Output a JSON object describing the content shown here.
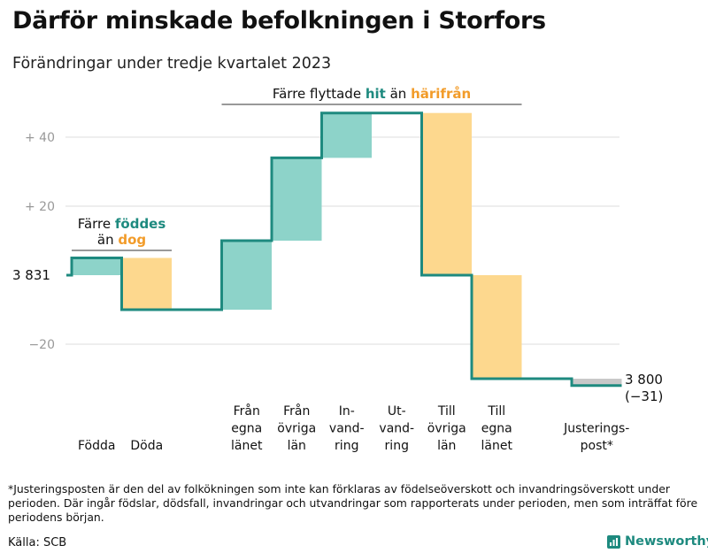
{
  "title": "Därför minskade befolkningen i Storfors",
  "subtitle": "Förändringar under tredje kvartalet 2023",
  "footnote": "*Justeringsposten är den del av folkökningen som inte kan förklaras av födelseöverskott och invandringsöverskott under perioden. Där ingår födslar, dödsfall, invandringar och utvandringar som rapporterats under perioden, men som inträffat före periodens början.",
  "source": "Källa: SCB",
  "brand": "Newsworthy",
  "colors": {
    "teal": "#1e8a7f",
    "teal_light": "#8dd3c9",
    "orange": "#f29c2a",
    "orange_light": "#fdd88e",
    "grey": "#c8c8c8",
    "line": "#1e8a7f"
  },
  "chart_data": {
    "type": "waterfall",
    "baseline_value": 3831,
    "baseline_label": "3 831",
    "end_value": 3800,
    "end_label": "3 800",
    "end_change_label": "(−31)",
    "ylim": [
      -30,
      50
    ],
    "yticks": [
      {
        "value": 40,
        "label": "+ 40"
      },
      {
        "value": 20,
        "label": "+ 20"
      },
      {
        "value": -20,
        "label": "−20"
      }
    ],
    "steps": [
      {
        "label": [
          "Födda"
        ],
        "value": 5,
        "kind": "in"
      },
      {
        "label": [
          "Döda"
        ],
        "value": -15,
        "kind": "out"
      },
      {
        "label": [],
        "value": 0,
        "kind": "gap"
      },
      {
        "label": [
          "Från",
          "egna",
          "länet"
        ],
        "value": 20,
        "kind": "in"
      },
      {
        "label": [
          "Från",
          "övriga",
          "län"
        ],
        "value": 24,
        "kind": "in"
      },
      {
        "label": [
          "In-",
          "vand-",
          "ring"
        ],
        "value": 13,
        "kind": "in"
      },
      {
        "label": [
          "Ut-",
          "vand-",
          "ring"
        ],
        "value": 0,
        "kind": "out"
      },
      {
        "label": [
          "Till",
          "övriga",
          "län"
        ],
        "value": -47,
        "kind": "out"
      },
      {
        "label": [
          "Till",
          "egna",
          "länet"
        ],
        "value": -30,
        "kind": "out"
      },
      {
        "label": [],
        "value": 0,
        "kind": "gap"
      },
      {
        "label": [
          "Justerings-",
          "post*"
        ],
        "value": -2,
        "kind": "adjust"
      }
    ],
    "annotations": [
      {
        "id": "birth",
        "parts": [
          [
            "Färre ",
            "plain"
          ],
          [
            "föddes",
            "teal"
          ]
        ],
        "parts2": [
          [
            "än ",
            "plain"
          ],
          [
            "dog",
            "orange"
          ]
        ]
      },
      {
        "id": "migration",
        "parts": [
          [
            "Färre flyttade ",
            "plain"
          ],
          [
            "hit",
            "teal"
          ],
          [
            " än ",
            "plain"
          ],
          [
            "härifrån",
            "orange"
          ]
        ]
      }
    ]
  }
}
